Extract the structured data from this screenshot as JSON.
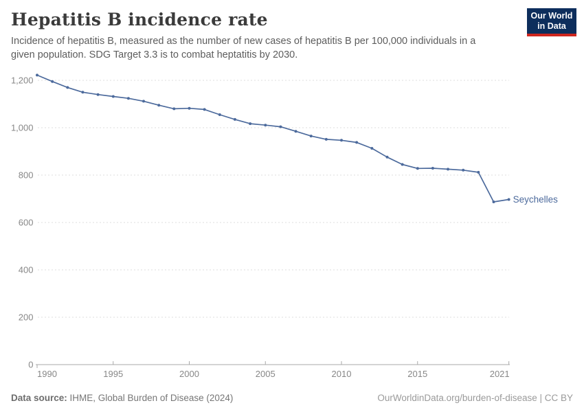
{
  "header": {
    "title": "Hepatitis B incidence rate",
    "subtitle": "Incidence of hepatitis B, measured as the number of new cases of hepatitis B per 100,000 individuals in a given population. SDG Target 3.3 is to combat heptatitis by 2030."
  },
  "logo": {
    "line1": "Our World",
    "line2": "in Data",
    "bg_color": "#0d2e5c",
    "accent_color": "#ce261e"
  },
  "chart_data": {
    "type": "line",
    "title": "Hepatitis B incidence rate",
    "entity_label": "Seychelles",
    "line_color": "#4C6A9C",
    "grid": "dashed horizontal",
    "legend_position": "end-of-line label",
    "xlabel": "",
    "ylabel": "",
    "ylim": [
      0,
      1250
    ],
    "yticks": [
      0,
      200,
      400,
      600,
      800,
      1000,
      1200
    ],
    "xticks": [
      1990,
      1995,
      2000,
      2005,
      2010,
      2015,
      2021
    ],
    "x": [
      1990,
      1991,
      1992,
      1993,
      1994,
      1995,
      1996,
      1997,
      1998,
      1999,
      2000,
      2001,
      2002,
      2003,
      2004,
      2005,
      2006,
      2007,
      2008,
      2009,
      2010,
      2011,
      2012,
      2013,
      2014,
      2015,
      2016,
      2017,
      2018,
      2019,
      2020,
      2021
    ],
    "series": [
      {
        "name": "Seychelles",
        "values": [
          1222,
          1195,
          1170,
          1150,
          1140,
          1132,
          1124,
          1112,
          1095,
          1080,
          1082,
          1077,
          1055,
          1035,
          1017,
          1011,
          1004,
          985,
          965,
          951,
          947,
          938,
          913,
          876,
          845,
          828,
          829,
          825,
          821,
          812,
          687,
          697
        ]
      }
    ]
  },
  "footer": {
    "source_label": "Data source:",
    "source_text": " IHME, Global Burden of Disease (2024)",
    "right_text": "OurWorldinData.org/burden-of-disease | CC BY"
  }
}
